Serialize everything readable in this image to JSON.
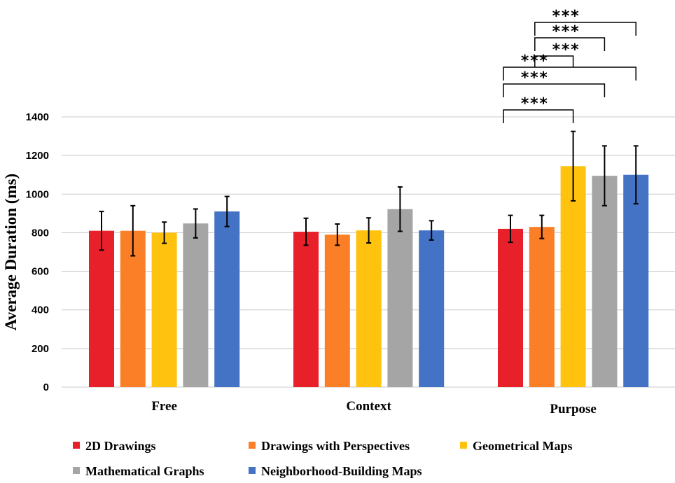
{
  "chart_data": {
    "type": "bar",
    "ylabel": "Average Duration (ms)",
    "ylim": [
      0,
      1400
    ],
    "yticks": [
      "0",
      "200",
      "400",
      "600",
      "800",
      "1000",
      "1200",
      "1400"
    ],
    "grid": true,
    "legend_position": "bottom",
    "categories": [
      "Free",
      "Context",
      "Purpose"
    ],
    "series": [
      {
        "name": "2D Drawings",
        "color": "#e8202a",
        "values": [
          810,
          805,
          820
        ],
        "error": [
          100,
          70,
          70
        ]
      },
      {
        "name": "Drawings with Perspectives",
        "color": "#fb7f26",
        "values": [
          810,
          790,
          830
        ],
        "error": [
          130,
          55,
          60
        ]
      },
      {
        "name": "Geometrical Maps",
        "color": "#ffc20e",
        "values": [
          800,
          812,
          1145
        ],
        "error": [
          55,
          65,
          180
        ]
      },
      {
        "name": "Mathematical Graphs",
        "color": "#a5a5a5",
        "values": [
          848,
          922,
          1095
        ],
        "error": [
          75,
          115,
          155
        ]
      },
      {
        "name": "Neighborhood-Building Maps",
        "color": "#4472c4",
        "values": [
          910,
          812,
          1100
        ],
        "error": [
          78,
          50,
          150
        ]
      }
    ],
    "significance": {
      "category": "Purpose",
      "label": "***",
      "pairs": [
        [
          "2D Drawings",
          "Geometrical Maps"
        ],
        [
          "2D Drawings",
          "Mathematical Graphs"
        ],
        [
          "2D Drawings",
          "Neighborhood-Building Maps"
        ],
        [
          "Drawings with Perspectives",
          "Geometrical Maps"
        ],
        [
          "Drawings with Perspectives",
          "Mathematical Graphs"
        ],
        [
          "Drawings with Perspectives",
          "Neighborhood-Building Maps"
        ]
      ]
    }
  }
}
